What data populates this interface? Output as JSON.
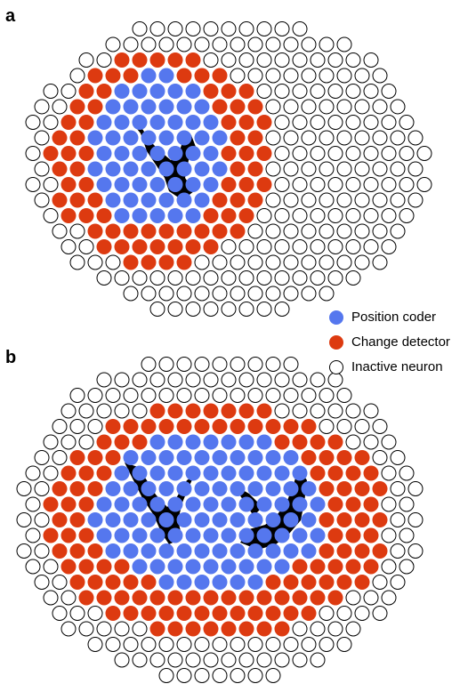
{
  "panels": [
    {
      "label": "a"
    },
    {
      "label": "b"
    }
  ],
  "legend": [
    {
      "label": "Position coder"
    },
    {
      "label": "Change detector"
    },
    {
      "label": "Inactive neuron"
    }
  ]
}
